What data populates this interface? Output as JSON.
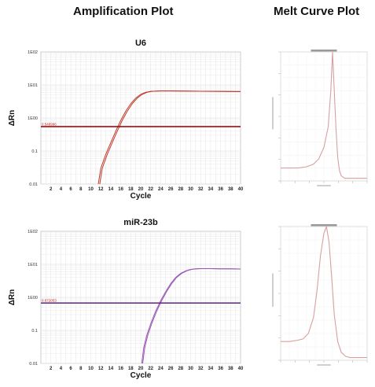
{
  "headers": {
    "amplification": "Amplification Plot",
    "melt": "Melt Curve Plot"
  },
  "colors": {
    "grid": "#e4e4e4",
    "frame": "#cccccc",
    "threshold_u6": "#8b1a1a",
    "threshold_mir": "#5a2a7a",
    "curve_u6": "#c0392b",
    "curve_mir": "#9b59b6",
    "threshold_label": "#cc2222",
    "melt_curve": "#d8a0a0"
  },
  "chart_data": [
    {
      "type": "line",
      "title": "U6",
      "xlabel": "Cycle",
      "ylabel": "ΔRn",
      "y_scale": "log",
      "xlim": [
        0,
        40
      ],
      "ylim": [
        0.01,
        100
      ],
      "x_ticks": [
        "2",
        "4",
        "6",
        "8",
        "10",
        "12",
        "14",
        "16",
        "18",
        "20",
        "22",
        "24",
        "26",
        "28",
        "30",
        "32",
        "34",
        "36",
        "38",
        "40"
      ],
      "y_ticks": [
        "1E02",
        "1E01",
        "1E00",
        "0.1",
        "0.01"
      ],
      "threshold": 0.548996,
      "threshold_label": "0.548996",
      "series": [
        {
          "x": [
            11.5,
            12,
            13,
            14,
            15,
            16,
            17,
            18,
            19,
            20,
            21,
            22,
            24,
            26,
            30,
            35,
            40
          ],
          "y": [
            0.01,
            0.03,
            0.08,
            0.18,
            0.4,
            0.85,
            1.6,
            2.7,
            4.0,
            5.2,
            6.0,
            6.4,
            6.6,
            6.6,
            6.5,
            6.4,
            6.3
          ]
        },
        {
          "x": [
            11.8,
            12.3,
            13.3,
            14.3,
            15.3,
            16.3,
            17.3,
            18.3,
            19.3,
            20.3,
            21.3,
            22.3,
            24,
            26,
            30,
            35,
            40
          ],
          "y": [
            0.01,
            0.03,
            0.08,
            0.18,
            0.4,
            0.85,
            1.6,
            2.7,
            4.0,
            5.2,
            6.0,
            6.4,
            6.6,
            6.6,
            6.5,
            6.4,
            6.3
          ]
        }
      ]
    },
    {
      "type": "line",
      "title": "miR-23b",
      "xlabel": "Cycle",
      "ylabel": "ΔRn",
      "y_scale": "log",
      "xlim": [
        0,
        40
      ],
      "ylim": [
        0.01,
        100
      ],
      "x_ticks": [
        "2",
        "4",
        "6",
        "8",
        "10",
        "12",
        "14",
        "16",
        "18",
        "20",
        "22",
        "24",
        "26",
        "28",
        "30",
        "32",
        "34",
        "36",
        "38",
        "40"
      ],
      "y_ticks": [
        "1E02",
        "1E01",
        "1E00",
        "0.1",
        "0.01"
      ],
      "threshold": 0.672053,
      "threshold_label": "0.672053",
      "series": [
        {
          "x": [
            20.2,
            20.6,
            21.2,
            22,
            23,
            24,
            25,
            26,
            27,
            28,
            29,
            30,
            31,
            32,
            34,
            36,
            38,
            40
          ],
          "y": [
            0.01,
            0.03,
            0.07,
            0.16,
            0.38,
            0.8,
            1.5,
            2.6,
            4.0,
            5.3,
            6.3,
            7.0,
            7.3,
            7.4,
            7.4,
            7.3,
            7.3,
            7.2
          ]
        },
        {
          "x": [
            20.4,
            20.8,
            21.4,
            22.2,
            23.2,
            24.2,
            25.2,
            26.2,
            27.2,
            28.2,
            29.2,
            30.2,
            31.2,
            32.2,
            34,
            36,
            38,
            40
          ],
          "y": [
            0.01,
            0.03,
            0.07,
            0.16,
            0.38,
            0.8,
            1.5,
            2.6,
            4.0,
            5.3,
            6.3,
            7.0,
            7.3,
            7.4,
            7.4,
            7.3,
            7.3,
            7.2
          ]
        }
      ]
    },
    {
      "type": "line",
      "y_scale": "linear",
      "xlim": [
        0,
        100
      ],
      "ylim": [
        0,
        100
      ],
      "series": [
        {
          "x": [
            0,
            10,
            20,
            30,
            38,
            44,
            50,
            55,
            58,
            60,
            62,
            64,
            66,
            68,
            70,
            74,
            80,
            90,
            100
          ],
          "y": [
            10,
            10,
            10,
            11,
            13,
            17,
            26,
            42,
            70,
            100,
            70,
            40,
            18,
            8,
            4,
            2,
            2,
            2,
            2
          ]
        }
      ]
    },
    {
      "type": "line",
      "y_scale": "linear",
      "xlim": [
        0,
        100
      ],
      "ylim": [
        0,
        100
      ],
      "series": [
        {
          "x": [
            0,
            10,
            20,
            26,
            32,
            38,
            42,
            46,
            50,
            53,
            56,
            59,
            62,
            66,
            70,
            75,
            80,
            90,
            100
          ],
          "y": [
            14,
            14,
            15,
            16,
            20,
            32,
            52,
            78,
            95,
            100,
            88,
            62,
            34,
            14,
            6,
            3,
            2,
            2,
            2
          ]
        }
      ]
    }
  ]
}
